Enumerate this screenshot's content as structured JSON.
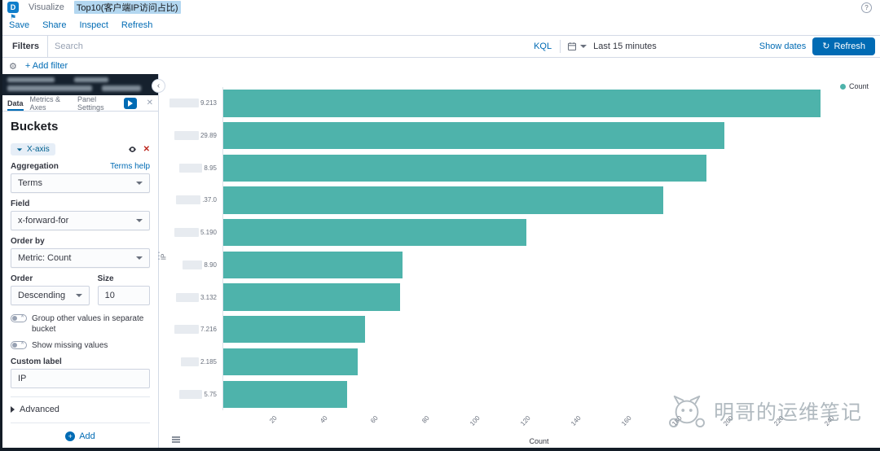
{
  "chrome": {
    "logo_letter": "D",
    "breadcrumb": "Visualize",
    "title": "Top10(客户端IP访问占比)",
    "menu": [
      "Save",
      "Share",
      "Inspect",
      "Refresh"
    ]
  },
  "query_bar": {
    "filters_label": "Filters",
    "search_placeholder": "Search",
    "kql_label": "KQL",
    "time_range": "Last 15 minutes",
    "show_dates": "Show dates",
    "refresh_label": "Refresh",
    "add_filter": "+ Add filter"
  },
  "editor": {
    "tabs": [
      "Data",
      "Metrics & Axes",
      "Panel Settings"
    ],
    "buckets_title": "Buckets",
    "bucket_badge": "X-axis",
    "aggregation_label": "Aggregation",
    "terms_help_link": "Terms help",
    "aggregation_value": "Terms",
    "field_label": "Field",
    "field_value": "x-forward-for",
    "order_by_label": "Order by",
    "order_by_value": "Metric: Count",
    "order_label": "Order",
    "order_value": "Descending",
    "size_label": "Size",
    "size_value": "10",
    "group_other_toggle": "Group other values in separate bucket",
    "show_missing_toggle": "Show missing values",
    "custom_label_label": "Custom label",
    "custom_label_value": "IP",
    "advanced_label": "Advanced",
    "add_button_label": "Add"
  },
  "chart_data": {
    "type": "bar",
    "orientation": "horizontal",
    "title": "Top10(客户端IP访问占比)",
    "legend": [
      "Count"
    ],
    "legend_position": "top-right",
    "labels_redacted": true,
    "categories": [
      "9.213",
      "29.89",
      "8.95",
      ".37.0",
      "5.190",
      "8.90",
      "3.132",
      "7.216",
      "2.185",
      "5.75"
    ],
    "values": [
      236,
      198,
      191,
      174,
      120,
      71,
      70,
      56,
      53,
      49
    ],
    "xlabel": "Count",
    "ylabel": "IP",
    "xlim": [
      0,
      250
    ],
    "xticks": [
      20,
      40,
      60,
      80,
      100,
      120,
      140,
      160,
      180,
      200,
      220,
      240
    ],
    "grid": false,
    "bar_color": "#4eb3ab"
  },
  "watermark": {
    "text": "明哥的运维笔记"
  }
}
